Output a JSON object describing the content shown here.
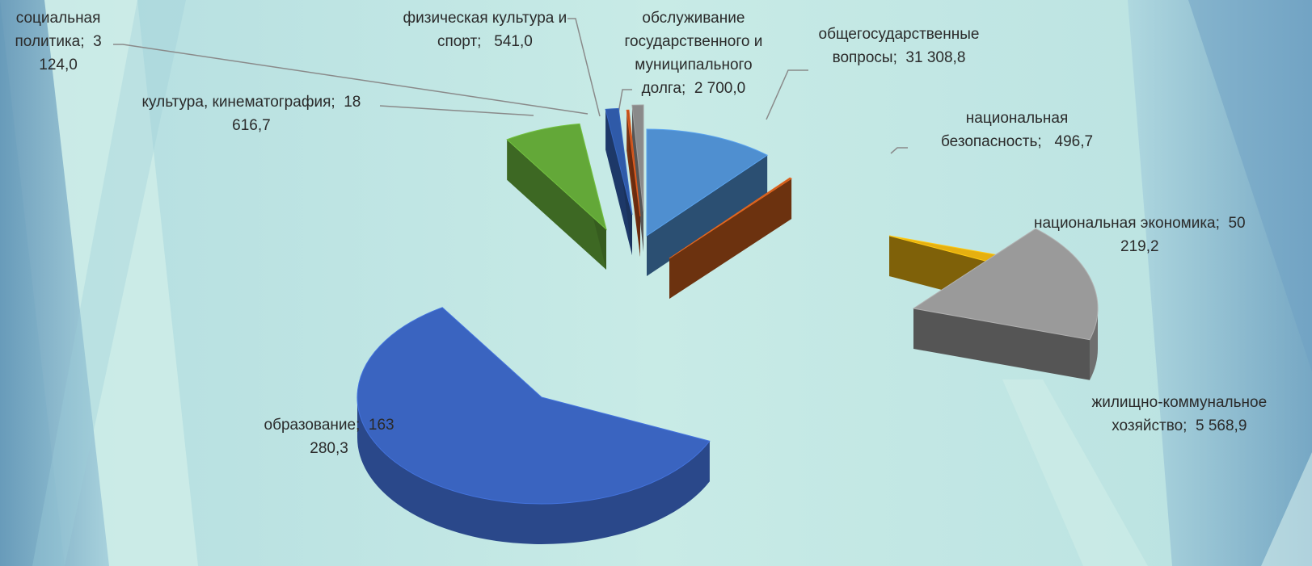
{
  "chart_data": {
    "type": "pie",
    "style": "3d-exploded",
    "title": "",
    "legend": "none",
    "slices": [
      {
        "category": "общегосударственные вопросы",
        "value": 31308.8,
        "label": "общегосударственные\nвопросы;  31 308,8",
        "color": "#4f8fd0"
      },
      {
        "category": "национальная безопасность",
        "value": 496.7,
        "label": "национальная\nбезопасность;   496,7",
        "color": "#c55a1c"
      },
      {
        "category": "национальная экономика",
        "value": 50219.2,
        "label": "национальная экономика;  50\n219,2",
        "color": "#9a9a9a"
      },
      {
        "category": "жилищно-коммунальное хозяйство",
        "value": 5568.9,
        "label": "жилищно-коммунальное\nхозяйство;  5 568,9",
        "color": "#e6b010"
      },
      {
        "category": "образование",
        "value": 163280.3,
        "label": "образование;  163\n280,3",
        "color": "#3a64c0"
      },
      {
        "category": "культура, кинематография",
        "value": 18616.7,
        "label": "культура, кинематография;  18\n616,7",
        "color": "#63a838"
      },
      {
        "category": "социальная политика",
        "value": 3124.0,
        "label": "социальная\nполитика;  3\n124,0",
        "color": "#2f5aa8"
      },
      {
        "category": "физическая культура и спорт",
        "value": 541.0,
        "label": "физическая культура и\nспорт;   541,0",
        "color": "#c0501c"
      },
      {
        "category": "обслуживание государственного и муниципального долга",
        "value": 2700.0,
        "label": "обслуживание\nгосударственного и\nмуниципального\nдолга;  2 700,0",
        "color": "#8a8a8a"
      }
    ]
  }
}
